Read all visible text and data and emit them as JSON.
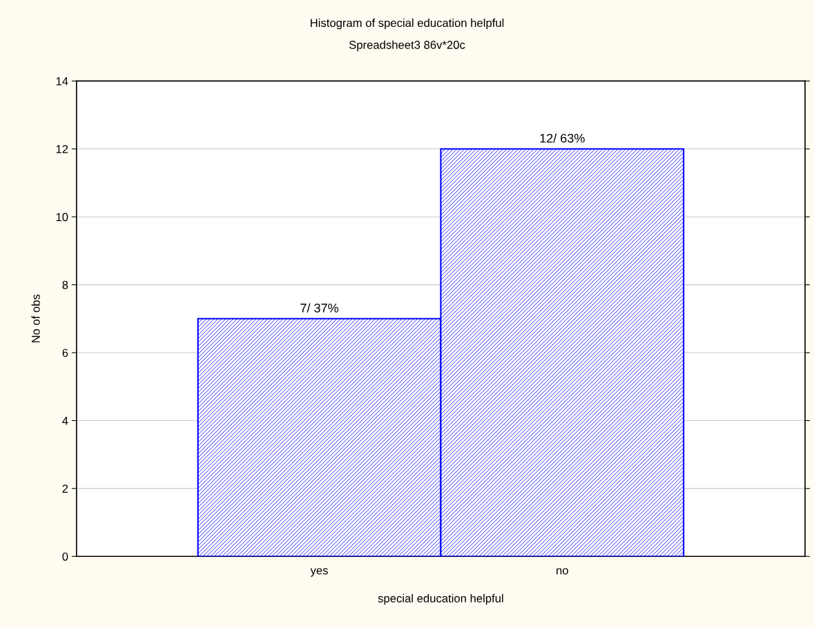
{
  "chart_data": {
    "type": "bar",
    "title": "Histogram of special education helpful",
    "subtitle": "Spreadsheet3 86v*20c",
    "xlabel": "special education helpful",
    "ylabel": "No of obs",
    "categories": [
      "yes",
      "no"
    ],
    "values": [
      7,
      12
    ],
    "value_labels": [
      "7/ 37%",
      "12/ 63%"
    ],
    "color": "#0000ff",
    "ylim": [
      0,
      14
    ],
    "yticks": [
      0,
      2,
      4,
      6,
      8,
      10,
      12,
      14
    ],
    "grid": "y"
  }
}
